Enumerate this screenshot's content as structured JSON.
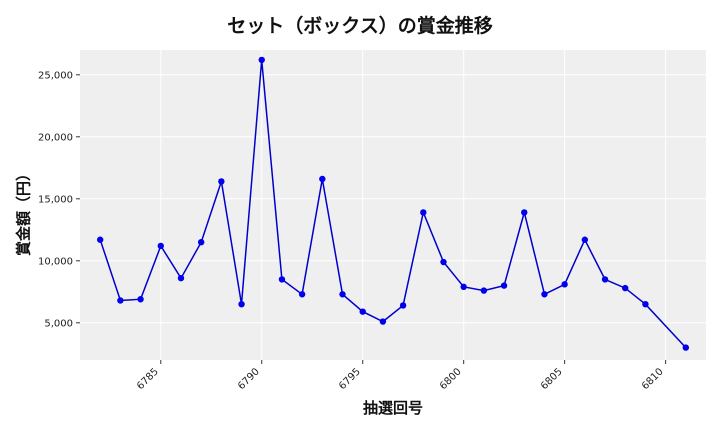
{
  "chart_data": {
    "type": "line",
    "title": "セット（ボックス）の賞金推移",
    "xlabel": "抽選回号",
    "ylabel": "賞金額（円）",
    "xlim": [
      6781,
      6812
    ],
    "ylim": [
      2000,
      27000
    ],
    "x_ticks": [
      6785,
      6790,
      6795,
      6800,
      6805,
      6810
    ],
    "x_tick_labels": [
      "6785",
      "6790",
      "6795",
      "6800",
      "6805",
      "6810"
    ],
    "y_ticks": [
      5000,
      10000,
      15000,
      20000,
      25000
    ],
    "y_tick_labels": [
      "5,000",
      "10,000",
      "15,000",
      "20,000",
      "25,000"
    ],
    "grid": true,
    "colors": {
      "line": "#0000cc",
      "marker": "#0000ee",
      "plot_background": "#efefef",
      "grid": "#ffffff"
    },
    "series": [
      {
        "x": [
          6782,
          6783,
          6784,
          6785,
          6786,
          6787,
          6788,
          6789,
          6790,
          6791,
          6792,
          6793,
          6794,
          6795,
          6796,
          6797,
          6798,
          6799,
          6800,
          6801,
          6802,
          6803,
          6804,
          6805,
          6806,
          6807,
          6808,
          6809,
          6811
        ],
        "values": [
          11700,
          6800,
          6900,
          11200,
          8600,
          11500,
          16400,
          6500,
          26200,
          8500,
          7300,
          16600,
          7300,
          5900,
          5100,
          6400,
          13900,
          9900,
          7900,
          7600,
          8000,
          13900,
          7300,
          8100,
          11700,
          8500,
          7800,
          6500,
          3000
        ]
      }
    ]
  }
}
